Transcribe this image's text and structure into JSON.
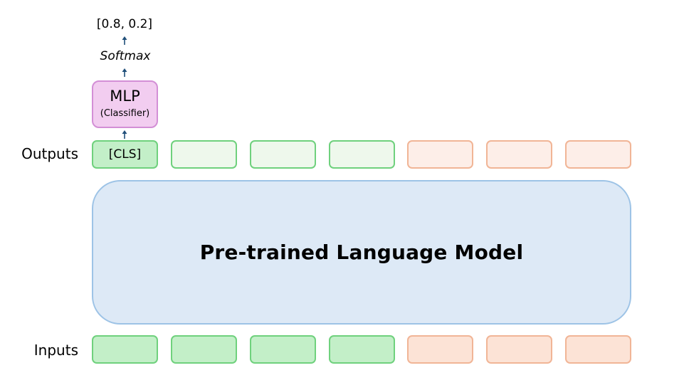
{
  "labels": {
    "outputs": "Outputs",
    "inputs": "Inputs"
  },
  "model": {
    "title": "Pre-trained Language Model"
  },
  "classifier": {
    "title": "MLP",
    "subtitle": "(Classifier)",
    "activation": "Softmax",
    "result": "[0.8, 0.2]"
  },
  "outputs": {
    "cls_label": "[CLS]"
  },
  "colors": {
    "green_border": "#6fd17d",
    "green_fill": "#c3efc8",
    "green_light_fill": "#eef8ec",
    "peach_border": "#f1b596",
    "peach_fill": "#fce3d6",
    "peach_light_fill": "#fdeee8",
    "model_border": "#9dc3e6",
    "model_fill": "#dde9f6",
    "mlp_border": "#d38fd6",
    "mlp_fill": "#f2cdf0",
    "arrow": "#1f4e79"
  }
}
